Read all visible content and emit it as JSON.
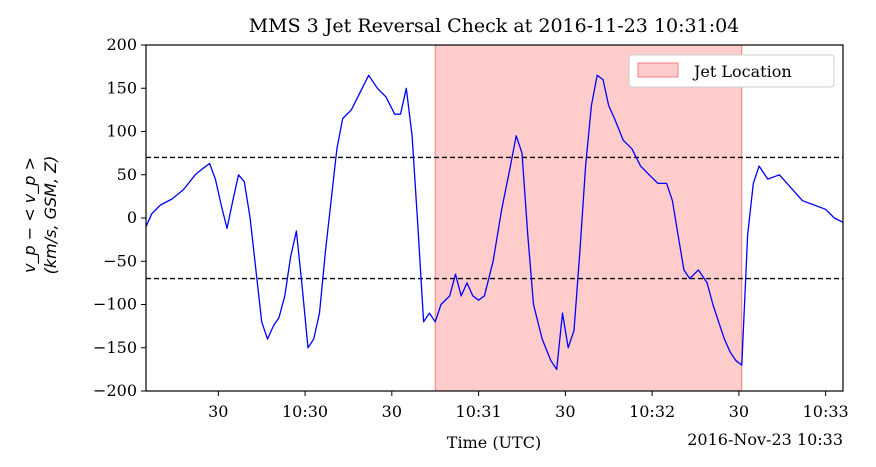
{
  "chart_data": {
    "type": "line",
    "title": "MMS 3 Jet Reversal Check at 2016-11-23 10:31:04",
    "xlabel": "Time (UTC)",
    "ylabel_line1": "v_p − < v_p >",
    "ylabel_line2": "(km/s, GSM, Z)",
    "x_offset_label": "2016-Nov-23 10:33",
    "x_range": [
      "2016-11-23 10:29:05",
      "2016-11-23 10:33:06"
    ],
    "ylim": [
      -200,
      200
    ],
    "yticks": [
      -200,
      -150,
      -100,
      -50,
      0,
      50,
      100,
      150,
      200
    ],
    "xticks": [
      {
        "time": "2016-11-23 10:29:30",
        "label": "30"
      },
      {
        "time": "2016-11-23 10:30:00",
        "label": "10:30"
      },
      {
        "time": "2016-11-23 10:30:30",
        "label": "30"
      },
      {
        "time": "2016-11-23 10:31:00",
        "label": "10:31"
      },
      {
        "time": "2016-11-23 10:31:30",
        "label": "30"
      },
      {
        "time": "2016-11-23 10:32:00",
        "label": "10:32"
      },
      {
        "time": "2016-11-23 10:32:30",
        "label": "30"
      },
      {
        "time": "2016-11-23 10:33:00",
        "label": "10:33"
      }
    ],
    "thresholds": [
      70,
      -70
    ],
    "jet_region": {
      "start": "2016-11-23 10:30:45",
      "end": "2016-11-23 10:32:31",
      "color": "#ffcccc",
      "edge_color": "#f08080"
    },
    "legend": {
      "label": "Jet Location",
      "placement": "top-right"
    },
    "series": [
      {
        "color": "#0000ff",
        "points": [
          [
            "2016-11-23 10:29:05",
            -10
          ],
          [
            "2016-11-23 10:29:07",
            5
          ],
          [
            "2016-11-23 10:29:10",
            15
          ],
          [
            "2016-11-23 10:29:14",
            22
          ],
          [
            "2016-11-23 10:29:18",
            33
          ],
          [
            "2016-11-23 10:29:22",
            50
          ],
          [
            "2016-11-23 10:29:25",
            58
          ],
          [
            "2016-11-23 10:29:27",
            63
          ],
          [
            "2016-11-23 10:29:29",
            45
          ],
          [
            "2016-11-23 10:29:31",
            15
          ],
          [
            "2016-11-23 10:29:33",
            -12
          ],
          [
            "2016-11-23 10:29:35",
            20
          ],
          [
            "2016-11-23 10:29:37",
            50
          ],
          [
            "2016-11-23 10:29:39",
            42
          ],
          [
            "2016-11-23 10:29:41",
            0
          ],
          [
            "2016-11-23 10:29:43",
            -60
          ],
          [
            "2016-11-23 10:29:45",
            -120
          ],
          [
            "2016-11-23 10:29:47",
            -140
          ],
          [
            "2016-11-23 10:29:49",
            -125
          ],
          [
            "2016-11-23 10:29:51",
            -115
          ],
          [
            "2016-11-23 10:29:53",
            -90
          ],
          [
            "2016-11-23 10:29:55",
            -45
          ],
          [
            "2016-11-23 10:29:57",
            -15
          ],
          [
            "2016-11-23 10:29:59",
            -80
          ],
          [
            "2016-11-23 10:30:01",
            -150
          ],
          [
            "2016-11-23 10:30:03",
            -140
          ],
          [
            "2016-11-23 10:30:05",
            -110
          ],
          [
            "2016-11-23 10:30:07",
            -40
          ],
          [
            "2016-11-23 10:30:09",
            20
          ],
          [
            "2016-11-23 10:30:11",
            80
          ],
          [
            "2016-11-23 10:30:13",
            115
          ],
          [
            "2016-11-23 10:30:16",
            125
          ],
          [
            "2016-11-23 10:30:19",
            145
          ],
          [
            "2016-11-23 10:30:22",
            165
          ],
          [
            "2016-11-23 10:30:25",
            150
          ],
          [
            "2016-11-23 10:30:28",
            140
          ],
          [
            "2016-11-23 10:30:31",
            120
          ],
          [
            "2016-11-23 10:30:33",
            120
          ],
          [
            "2016-11-23 10:30:35",
            150
          ],
          [
            "2016-11-23 10:30:37",
            95
          ],
          [
            "2016-11-23 10:30:39",
            -10
          ],
          [
            "2016-11-23 10:30:41",
            -120
          ],
          [
            "2016-11-23 10:30:43",
            -110
          ],
          [
            "2016-11-23 10:30:45",
            -120
          ],
          [
            "2016-11-23 10:30:47",
            -100
          ],
          [
            "2016-11-23 10:30:50",
            -90
          ],
          [
            "2016-11-23 10:30:52",
            -65
          ],
          [
            "2016-11-23 10:30:54",
            -90
          ],
          [
            "2016-11-23 10:30:56",
            -75
          ],
          [
            "2016-11-23 10:30:58",
            -90
          ],
          [
            "2016-11-23 10:31:00",
            -95
          ],
          [
            "2016-11-23 10:31:02",
            -90
          ],
          [
            "2016-11-23 10:31:05",
            -50
          ],
          [
            "2016-11-23 10:31:08",
            10
          ],
          [
            "2016-11-23 10:31:11",
            60
          ],
          [
            "2016-11-23 10:31:13",
            95
          ],
          [
            "2016-11-23 10:31:15",
            75
          ],
          [
            "2016-11-23 10:31:17",
            -20
          ],
          [
            "2016-11-23 10:31:19",
            -100
          ],
          [
            "2016-11-23 10:31:22",
            -140
          ],
          [
            "2016-11-23 10:31:25",
            -165
          ],
          [
            "2016-11-23 10:31:27",
            -175
          ],
          [
            "2016-11-23 10:31:29",
            -110
          ],
          [
            "2016-11-23 10:31:31",
            -150
          ],
          [
            "2016-11-23 10:31:33",
            -130
          ],
          [
            "2016-11-23 10:31:35",
            -40
          ],
          [
            "2016-11-23 10:31:37",
            60
          ],
          [
            "2016-11-23 10:31:39",
            130
          ],
          [
            "2016-11-23 10:31:41",
            165
          ],
          [
            "2016-11-23 10:31:43",
            160
          ],
          [
            "2016-11-23 10:31:45",
            130
          ],
          [
            "2016-11-23 10:31:47",
            115
          ],
          [
            "2016-11-23 10:31:50",
            90
          ],
          [
            "2016-11-23 10:31:53",
            80
          ],
          [
            "2016-11-23 10:31:56",
            60
          ],
          [
            "2016-11-23 10:31:59",
            50
          ],
          [
            "2016-11-23 10:32:02",
            40
          ],
          [
            "2016-11-23 10:32:05",
            40
          ],
          [
            "2016-11-23 10:32:07",
            20
          ],
          [
            "2016-11-23 10:32:09",
            -20
          ],
          [
            "2016-11-23 10:32:11",
            -60
          ],
          [
            "2016-11-23 10:32:13",
            -70
          ],
          [
            "2016-11-23 10:32:16",
            -60
          ],
          [
            "2016-11-23 10:32:19",
            -75
          ],
          [
            "2016-11-23 10:32:21",
            -100
          ],
          [
            "2016-11-23 10:32:23",
            -120
          ],
          [
            "2016-11-23 10:32:25",
            -140
          ],
          [
            "2016-11-23 10:32:27",
            -155
          ],
          [
            "2016-11-23 10:32:29",
            -165
          ],
          [
            "2016-11-23 10:32:31",
            -170
          ],
          [
            "2016-11-23 10:32:33",
            -20
          ],
          [
            "2016-11-23 10:32:35",
            40
          ],
          [
            "2016-11-23 10:32:37",
            60
          ],
          [
            "2016-11-23 10:32:40",
            45
          ],
          [
            "2016-11-23 10:32:44",
            50
          ],
          [
            "2016-11-23 10:32:48",
            35
          ],
          [
            "2016-11-23 10:32:52",
            20
          ],
          [
            "2016-11-23 10:32:56",
            15
          ],
          [
            "2016-11-23 10:33:00",
            10
          ],
          [
            "2016-11-23 10:33:03",
            0
          ],
          [
            "2016-11-23 10:33:06",
            -5
          ]
        ]
      }
    ]
  }
}
